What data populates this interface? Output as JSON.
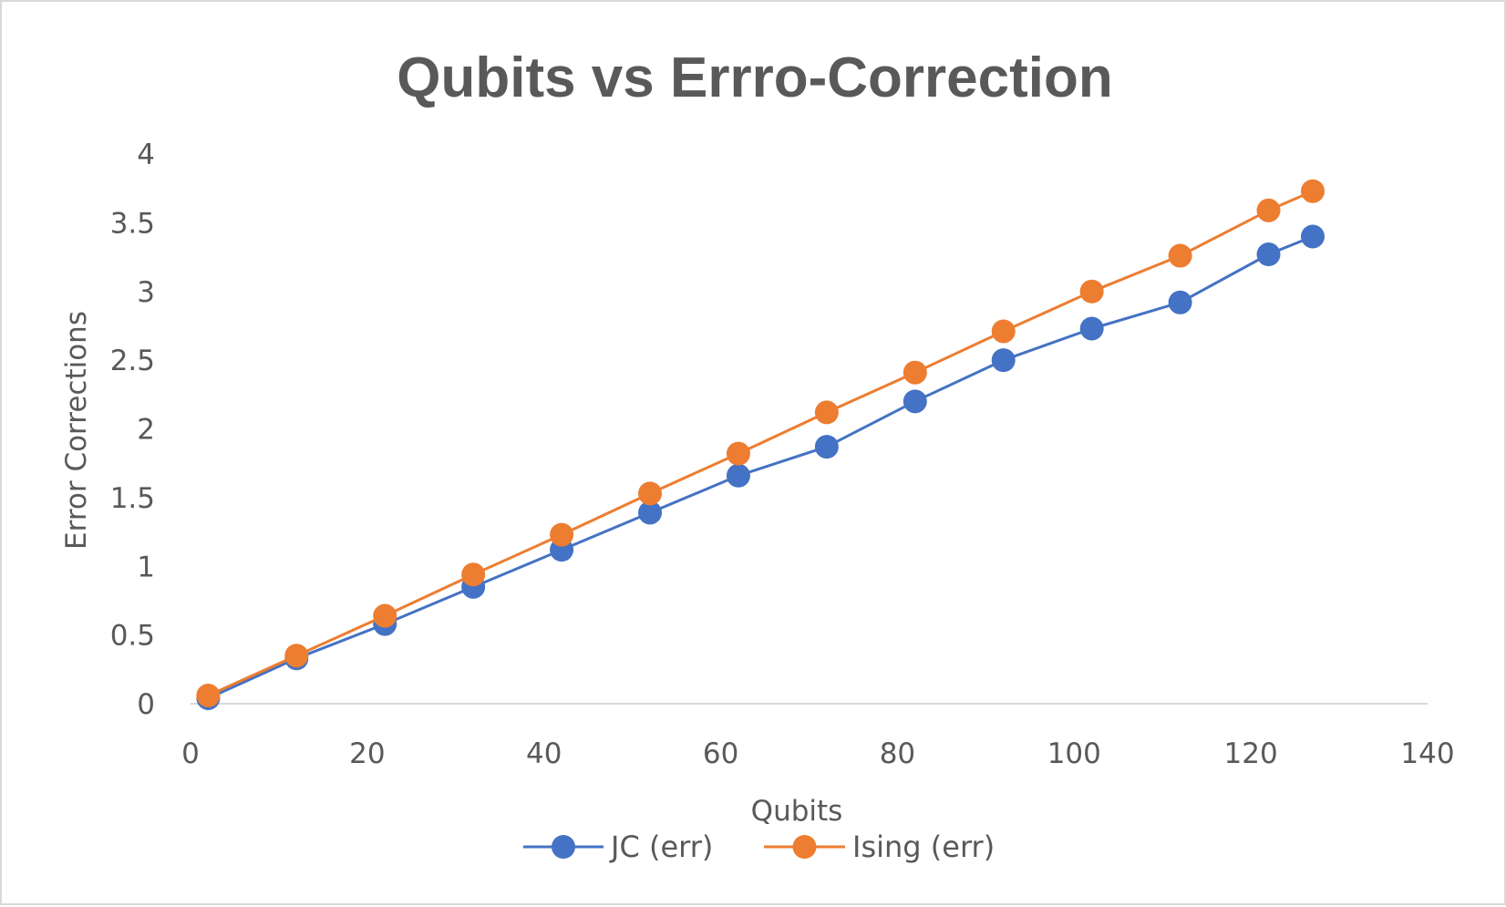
{
  "chart_data": {
    "type": "line",
    "title": "Qubits vs Errro-Correction",
    "xlabel": "Qubits",
    "ylabel": "Error Corrections",
    "xlim": [
      0,
      140
    ],
    "ylim": [
      0,
      4
    ],
    "x_ticks": [
      "0",
      "20",
      "40",
      "60",
      "80",
      "100",
      "120",
      "140"
    ],
    "y_ticks": [
      "0",
      "0.5",
      "1",
      "1.5",
      "2",
      "2.5",
      "3",
      "3.5",
      "4"
    ],
    "grid": false,
    "legend_position": "bottom",
    "series": [
      {
        "name": "JC (err)",
        "color": "#4472C4",
        "points": [
          {
            "x": 2,
            "y": 0.04
          },
          {
            "x": 12,
            "y": 0.33
          },
          {
            "x": 22,
            "y": 0.58
          },
          {
            "x": 32,
            "y": 0.85
          },
          {
            "x": 42,
            "y": 1.12
          },
          {
            "x": 52,
            "y": 1.39
          },
          {
            "x": 62,
            "y": 1.66
          },
          {
            "x": 72,
            "y": 1.87
          },
          {
            "x": 82,
            "y": 2.2
          },
          {
            "x": 92,
            "y": 2.5
          },
          {
            "x": 102,
            "y": 2.73
          },
          {
            "x": 112,
            "y": 2.92
          },
          {
            "x": 122,
            "y": 3.27
          },
          {
            "x": 127,
            "y": 3.4
          }
        ]
      },
      {
        "name": "Ising (err)",
        "color": "#ED7D31",
        "points": [
          {
            "x": 2,
            "y": 0.06
          },
          {
            "x": 12,
            "y": 0.35
          },
          {
            "x": 22,
            "y": 0.64
          },
          {
            "x": 32,
            "y": 0.94
          },
          {
            "x": 42,
            "y": 1.23
          },
          {
            "x": 52,
            "y": 1.53
          },
          {
            "x": 62,
            "y": 1.82
          },
          {
            "x": 72,
            "y": 2.12
          },
          {
            "x": 82,
            "y": 2.41
          },
          {
            "x": 92,
            "y": 2.71
          },
          {
            "x": 102,
            "y": 3.0
          },
          {
            "x": 112,
            "y": 3.26
          },
          {
            "x": 122,
            "y": 3.59
          },
          {
            "x": 127,
            "y": 3.73
          }
        ]
      }
    ]
  }
}
